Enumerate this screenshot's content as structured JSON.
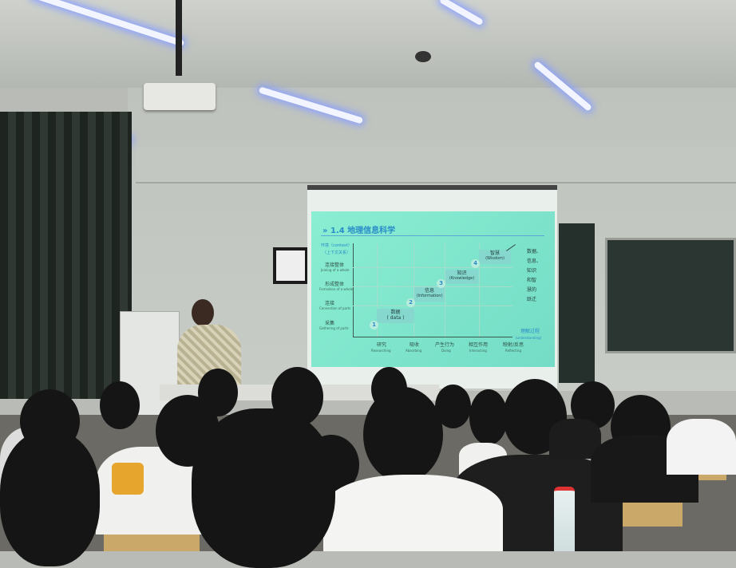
{
  "slide": {
    "title": "1.4 地理信息科学",
    "title_marker": "»",
    "y_axis_label": "环境（context）",
    "y_axis_sublabel": "（上下文关系）",
    "y_levels": [
      {
        "zh": "连接整体",
        "en": "Joining of a whole"
      },
      {
        "zh": "形成整体",
        "en": "Formation of a whole"
      },
      {
        "zh": "连接",
        "en": "Connection of parts"
      },
      {
        "zh": "采集",
        "en": "Gathering of parts"
      }
    ],
    "x_levels": [
      {
        "zh": "研究",
        "en": "Researching"
      },
      {
        "zh": "吸收",
        "en": "Absorbing"
      },
      {
        "zh": "产生行为",
        "en": "Doing"
      },
      {
        "zh": "相互作用",
        "en": "Interacting"
      },
      {
        "zh": "映射/反思",
        "en": "Reflecting"
      }
    ],
    "steps": [
      {
        "num": "1",
        "zh": "数据",
        "en": "( data )"
      },
      {
        "num": "2",
        "zh": "信息",
        "en": "(Information)"
      },
      {
        "num": "3",
        "zh": "知识",
        "en": "(Knowledge)"
      },
      {
        "num": "4",
        "zh": "智慧",
        "en": "(Wisdom)"
      }
    ],
    "x_axis_label": "理解过程",
    "x_axis_sublabel": "(understanding)",
    "side_note": [
      "数据、",
      "信息、",
      "知识",
      "和智",
      "慧的",
      "跃迁"
    ],
    "colors": {
      "background": "#7fe6c4",
      "accent": "#2a8cc8"
    }
  }
}
